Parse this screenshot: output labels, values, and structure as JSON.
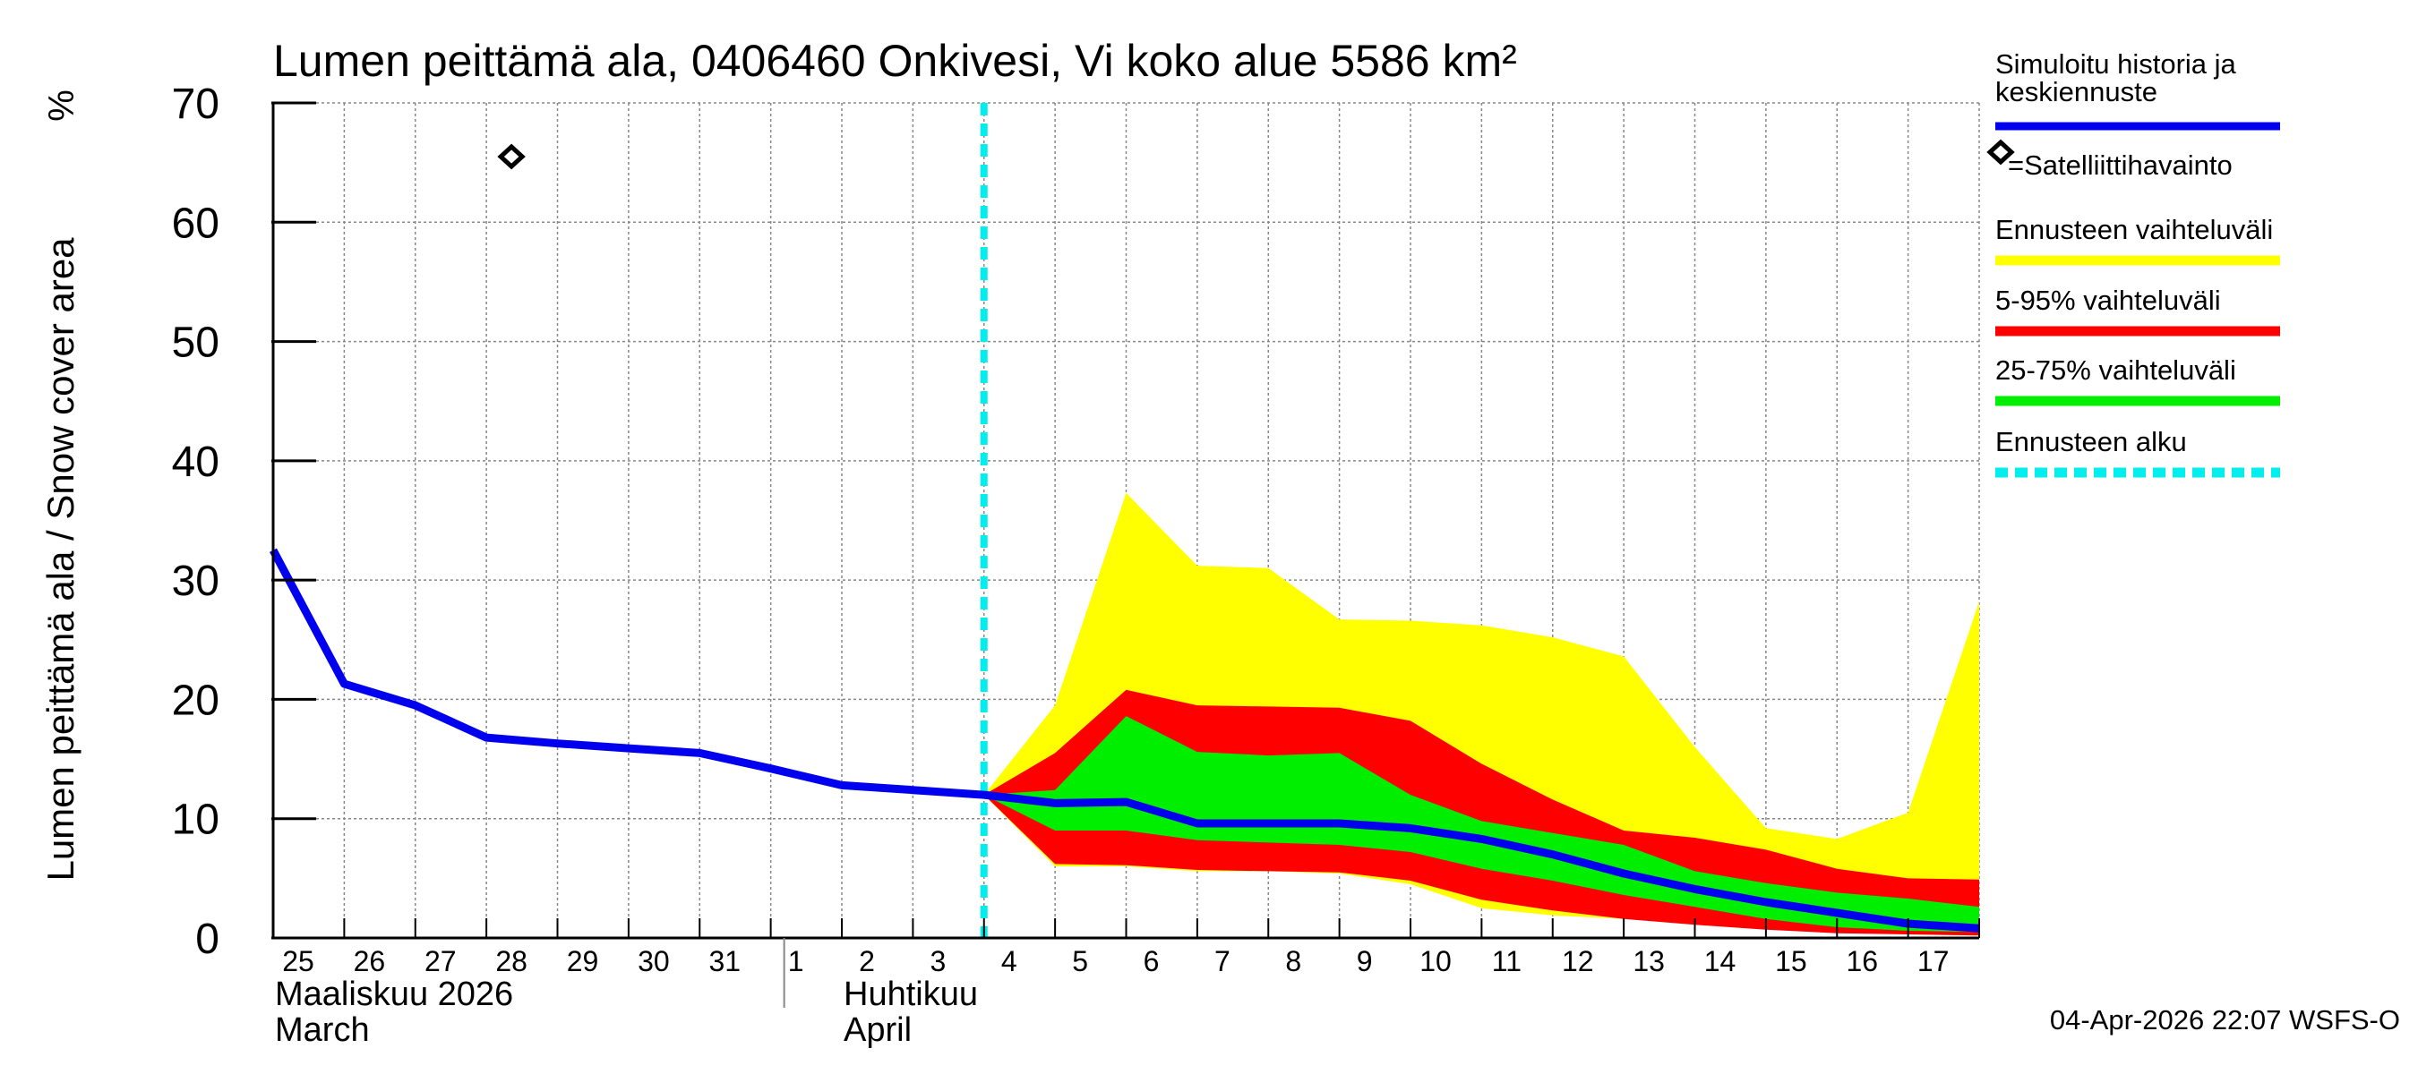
{
  "chart_data": {
    "type": "area",
    "title": "Lumen peittämä ala, 0406460 Onkivesi, Vi koko alue 5586 km²",
    "ylabel": "Lumen peittämä ala / Snow cover area",
    "yunit": "%",
    "ylim": [
      0,
      70
    ],
    "yticks": [
      0,
      10,
      20,
      30,
      40,
      50,
      60,
      70
    ],
    "xlim": [
      0,
      24
    ],
    "days": [
      "25",
      "26",
      "27",
      "28",
      "29",
      "30",
      "31",
      "1",
      "2",
      "3",
      "4",
      "5",
      "6",
      "7",
      "8",
      "9",
      "10",
      "11",
      "12",
      "13",
      "14",
      "15",
      "16",
      "17"
    ],
    "month_labels": [
      {
        "fi": "Maaliskuu 2026",
        "en": "March",
        "day_index": 0
      },
      {
        "fi": "Huhtikuu",
        "en": "April",
        "day_index": 8
      }
    ],
    "month_divider_index": 7,
    "forecast_start": 10,
    "grid": true,
    "series": {
      "history_median": {
        "name": "Simuloitu historia ja keskiennuste",
        "color": "#0000ee",
        "x": [
          0,
          1,
          2,
          3,
          4,
          5,
          6,
          7,
          8,
          9,
          10,
          11,
          12,
          13,
          14,
          15,
          16,
          17,
          18,
          19,
          20,
          21,
          22,
          23,
          24
        ],
        "y": [
          32.5,
          21.3,
          19.5,
          16.8,
          16.3,
          15.9,
          15.5,
          14.2,
          12.8,
          12.4,
          12.0,
          11.3,
          11.4,
          9.6,
          9.6,
          9.6,
          9.2,
          8.3,
          7.0,
          5.4,
          4.1,
          3.0,
          2.1,
          1.2,
          0.8
        ]
      },
      "satellite": {
        "name": "=Satelliittihavainto",
        "x": [
          3
        ],
        "y": [
          65.5
        ]
      },
      "forecast_range": {
        "name": "Ennusteen vaihteluväli",
        "color": "#ffff00",
        "x": [
          10,
          11,
          12,
          13,
          14,
          15,
          16,
          17,
          18,
          19,
          20,
          21,
          22,
          23,
          24
        ],
        "upper": [
          12.0,
          19.5,
          37.3,
          31.2,
          31.0,
          26.7,
          26.6,
          26.2,
          25.2,
          23.6,
          16.0,
          9.2,
          8.3,
          10.5,
          28.2
        ],
        "lower": [
          12.0,
          6.0,
          6.0,
          5.6,
          5.6,
          5.4,
          4.5,
          2.5,
          1.9,
          1.6,
          1.2,
          0.8,
          0.5,
          0.3,
          0.2
        ]
      },
      "p5_95": {
        "name": "5-95% vaihteluväli",
        "color": "#ff0000",
        "x": [
          10,
          11,
          12,
          13,
          14,
          15,
          16,
          17,
          18,
          19,
          20,
          21,
          22,
          23,
          24
        ],
        "upper": [
          12.0,
          15.5,
          20.8,
          19.5,
          19.4,
          19.3,
          18.2,
          14.6,
          11.6,
          9.0,
          8.4,
          7.4,
          5.8,
          5.0,
          4.9
        ],
        "lower": [
          12.0,
          6.2,
          6.1,
          5.7,
          5.6,
          5.5,
          4.8,
          3.2,
          2.3,
          1.6,
          1.1,
          0.7,
          0.4,
          0.3,
          0.2
        ]
      },
      "p25_75": {
        "name": "25-75% vaihteluväli",
        "color": "#00ee00",
        "x": [
          10,
          11,
          12,
          13,
          14,
          15,
          16,
          17,
          18,
          19,
          20,
          21,
          22,
          23,
          24
        ],
        "upper": [
          12.0,
          12.4,
          18.6,
          15.6,
          15.3,
          15.5,
          12.0,
          9.8,
          8.8,
          7.8,
          5.6,
          4.6,
          3.8,
          3.3,
          2.6
        ],
        "lower": [
          12.0,
          9.0,
          9.0,
          8.2,
          8.0,
          7.8,
          7.2,
          5.8,
          4.8,
          3.6,
          2.6,
          1.6,
          0.9,
          0.6,
          0.5
        ]
      },
      "forecast_start_line": {
        "name": "Ennusteen alku",
        "color": "#00eeee"
      }
    },
    "legend": [
      {
        "key": "history_median",
        "label": "Simuloitu historia ja keskiennuste",
        "style": "line",
        "color": "#0000ee"
      },
      {
        "key": "satellite",
        "label": "=Satelliittihavainto",
        "style": "diamond",
        "color": "#000000"
      },
      {
        "key": "forecast_range",
        "label": "Ennusteen vaihteluväli",
        "style": "line",
        "color": "#ffff00"
      },
      {
        "key": "p5_95",
        "label": "5-95% vaihteluväli",
        "style": "line",
        "color": "#ff0000"
      },
      {
        "key": "p25_75",
        "label": "25-75% vaihteluväli",
        "style": "line",
        "color": "#00ee00"
      },
      {
        "key": "forecast_start_line",
        "label": "Ennusteen alku",
        "style": "dashed",
        "color": "#00eeee"
      }
    ],
    "legend_position": "right",
    "footer": "04-Apr-2026 22:07 WSFS-O"
  }
}
